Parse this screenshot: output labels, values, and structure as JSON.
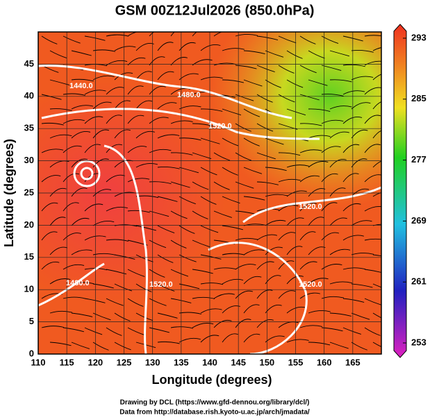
{
  "map": {
    "title": "GSM 00Z12Jul2026 (850.0hPa)",
    "x_label": "Longitude (degrees)",
    "y_label": "Latitude  (degrees)",
    "xlim": [
      110,
      170
    ],
    "ylim": [
      0,
      50
    ],
    "xticks": [
      110,
      115,
      120,
      125,
      130,
      135,
      140,
      145,
      150,
      155,
      160,
      165
    ],
    "yticks": [
      0,
      5,
      10,
      15,
      20,
      25,
      30,
      35,
      40,
      45
    ],
    "grid": true,
    "colorbar": {
      "lim": [
        253,
        293
      ],
      "ticks": [
        253,
        261,
        269,
        277,
        285,
        293
      ]
    },
    "contour_labels": [
      "1440.0",
      "1480.0",
      "1520.0",
      "1480.0",
      "1520.0",
      "1520.0",
      "1520.0"
    ],
    "credits": [
      "Drawing by DCL (https://www.gfd-dennou.org/library/dcl/)",
      "Data from http://database.rish.kyoto-u.ac.jp/arch/jmadata/"
    ]
  }
}
